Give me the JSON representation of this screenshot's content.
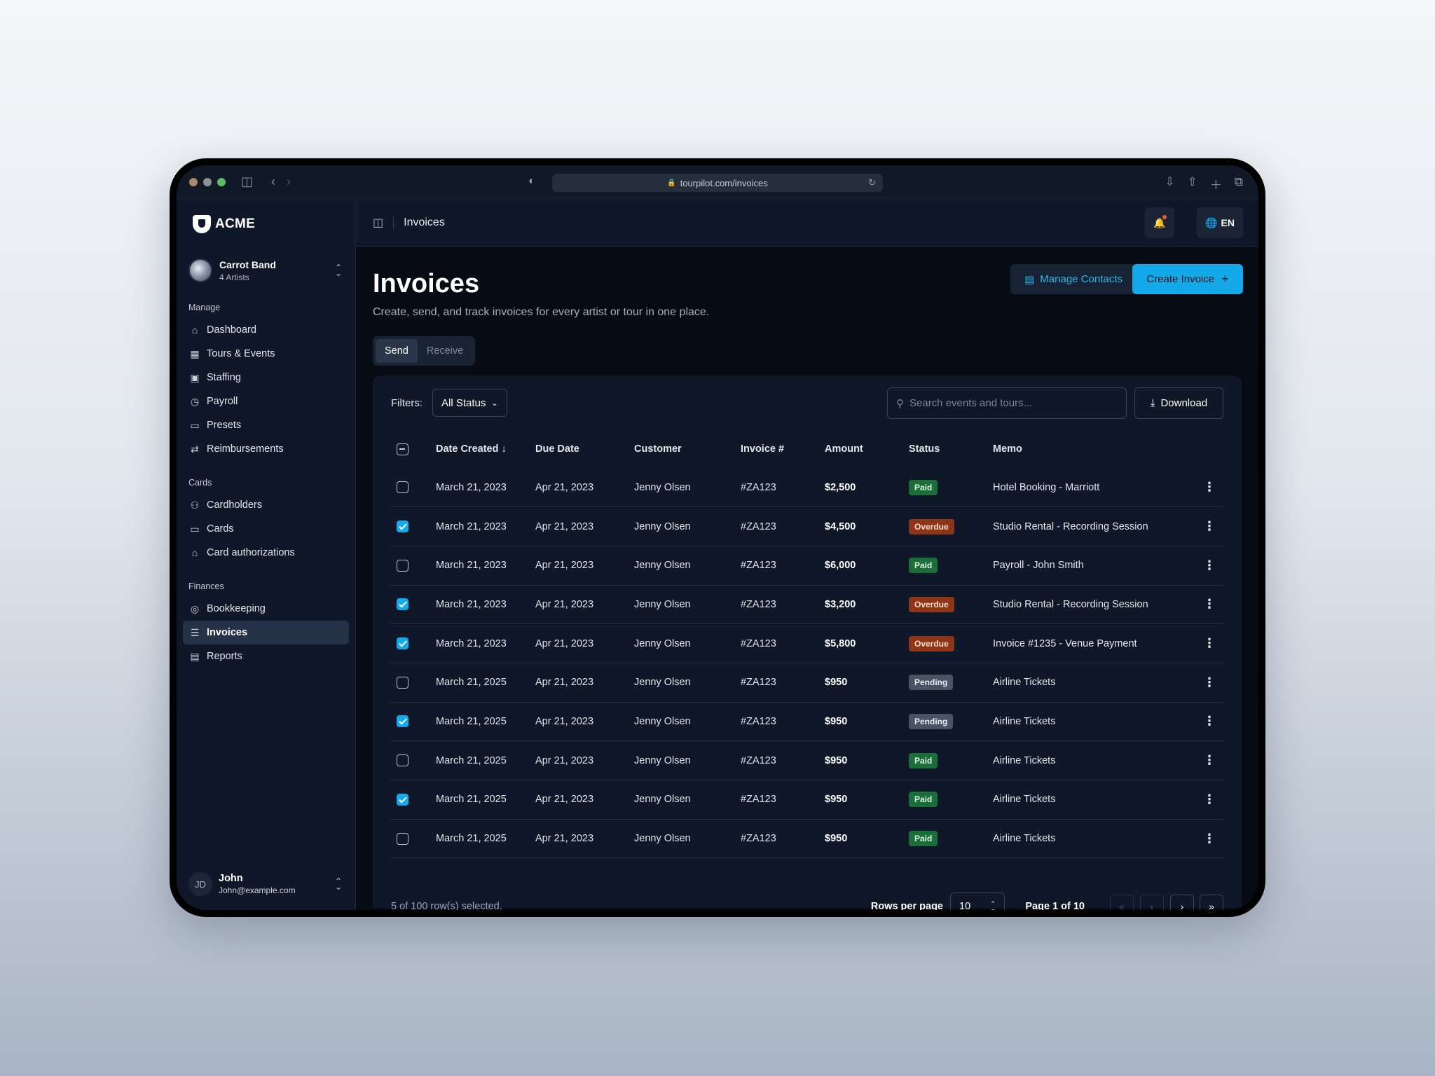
{
  "browser": {
    "url": "tourpilot.com/invoices",
    "dots": [
      "#a8896f",
      "#8d8f95",
      "#5dbb63"
    ]
  },
  "brand": {
    "name": "ACME"
  },
  "workspace": {
    "name": "Carrot Band",
    "sub": "4 Artists"
  },
  "sidebar": {
    "sections": [
      {
        "label": "Manage",
        "items": [
          {
            "label": "Dashboard",
            "icon": "home-icon"
          },
          {
            "label": "Tours & Events",
            "icon": "calendar-icon"
          },
          {
            "label": "Staffing",
            "icon": "person-badge-icon"
          },
          {
            "label": "Payroll",
            "icon": "calendar-clock-icon"
          },
          {
            "label": "Presets",
            "icon": "folder-icon"
          },
          {
            "label": "Reimbursements",
            "icon": "repeat-icon"
          }
        ]
      },
      {
        "label": "Cards",
        "items": [
          {
            "label": "Cardholders",
            "icon": "users-icon"
          },
          {
            "label": "Cards",
            "icon": "card-icon"
          },
          {
            "label": "Card authorizations",
            "icon": "lock-icon"
          }
        ]
      },
      {
        "label": "Finances",
        "items": [
          {
            "label": "Bookkeeping",
            "icon": "coins-icon"
          },
          {
            "label": "Invoices",
            "icon": "document-icon",
            "active": true
          },
          {
            "label": "Reports",
            "icon": "report-icon"
          }
        ]
      }
    ]
  },
  "user": {
    "initials": "JD",
    "name": "John",
    "email": "John@example.com"
  },
  "topbar": {
    "breadcrumb": "Invoices",
    "lang": "EN"
  },
  "page": {
    "title": "Invoices",
    "subtitle": "Create, send, and track invoices for every artist or tour in one place.",
    "manage_contacts": "Manage Contacts",
    "create_invoice": "Create Invoice",
    "tabs": [
      {
        "label": "Send",
        "active": true
      },
      {
        "label": "Receive",
        "active": false
      }
    ]
  },
  "filters": {
    "label": "Filters:",
    "status": "All Status",
    "search_placeholder": "Search events and tours...",
    "download": "Download"
  },
  "table": {
    "columns": [
      "Date Created",
      "Due Date",
      "Customer",
      "Invoice #",
      "Amount",
      "Status",
      "Memo"
    ],
    "rows": [
      {
        "checked": false,
        "created": "March 21, 2023",
        "due": "Apr 21, 2023",
        "customer": "Jenny Olsen",
        "invoice": "#ZA123",
        "amount": "$2,500",
        "status": "Paid",
        "memo": "Hotel Booking - Marriott"
      },
      {
        "checked": true,
        "created": "March 21, 2023",
        "due": "Apr 21, 2023",
        "customer": "Jenny Olsen",
        "invoice": "#ZA123",
        "amount": "$4,500",
        "status": "Overdue",
        "memo": "Studio Rental - Recording Session"
      },
      {
        "checked": false,
        "created": "March 21, 2023",
        "due": "Apr 21, 2023",
        "customer": "Jenny Olsen",
        "invoice": "#ZA123",
        "amount": "$6,000",
        "status": "Paid",
        "memo": "Payroll - John Smith"
      },
      {
        "checked": true,
        "created": "March 21, 2023",
        "due": "Apr 21, 2023",
        "customer": "Jenny Olsen",
        "invoice": "#ZA123",
        "amount": "$3,200",
        "status": "Overdue",
        "memo": "Studio Rental - Recording Session"
      },
      {
        "checked": true,
        "created": "March 21, 2023",
        "due": "Apr 21, 2023",
        "customer": "Jenny Olsen",
        "invoice": "#ZA123",
        "amount": "$5,800",
        "status": "Overdue",
        "memo": "Invoice #1235 - Venue Payment"
      },
      {
        "checked": false,
        "created": "March 21, 2025",
        "due": "Apr 21, 2023",
        "customer": "Jenny Olsen",
        "invoice": "#ZA123",
        "amount": "$950",
        "status": "Pending",
        "memo": "Airline Tickets"
      },
      {
        "checked": true,
        "created": "March 21, 2025",
        "due": "Apr 21, 2023",
        "customer": "Jenny Olsen",
        "invoice": "#ZA123",
        "amount": "$950",
        "status": "Pending",
        "memo": "Airline Tickets"
      },
      {
        "checked": false,
        "created": "March 21, 2025",
        "due": "Apr 21, 2023",
        "customer": "Jenny Olsen",
        "invoice": "#ZA123",
        "amount": "$950",
        "status": "Paid",
        "memo": "Airline Tickets"
      },
      {
        "checked": true,
        "created": "March 21, 2025",
        "due": "Apr 21, 2023",
        "customer": "Jenny Olsen",
        "invoice": "#ZA123",
        "amount": "$950",
        "status": "Paid",
        "memo": "Airline Tickets"
      },
      {
        "checked": false,
        "created": "March 21, 2025",
        "due": "Apr 21, 2023",
        "customer": "Jenny Olsen",
        "invoice": "#ZA123",
        "amount": "$950",
        "status": "Paid",
        "memo": "Airline Tickets"
      }
    ]
  },
  "footer": {
    "selected": "5 of 100 row(s) selected.",
    "rows_per_page_label": "Rows per page",
    "rows_per_page": "10",
    "page_of": "Page 1 of 10"
  },
  "colors": {
    "accent": "#14a9e8",
    "paid": "#1b6e3a",
    "overdue": "#8d3517",
    "pending": "#4a5363"
  }
}
